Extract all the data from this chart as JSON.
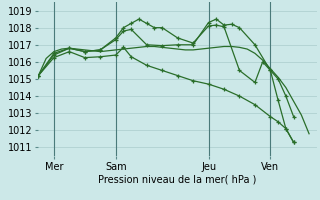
{
  "background_color": "#cce8e8",
  "grid_color": "#aacccc",
  "line_color": "#2a6e2a",
  "xlabel": "Pression niveau de la mer( hPa )",
  "ylim": [
    1010.5,
    1019.5
  ],
  "yticks": [
    1011,
    1012,
    1013,
    1014,
    1015,
    1016,
    1017,
    1018,
    1019
  ],
  "xtick_labels": [
    "Mer",
    "Sam",
    "Jeu",
    "Ven"
  ],
  "xtick_positions": [
    2,
    10,
    22,
    30
  ],
  "vlines": [
    2,
    10,
    22,
    30
  ],
  "xlim": [
    0,
    36
  ],
  "line_smooth_x": [
    0,
    1,
    2,
    3,
    4,
    5,
    6,
    7,
    8,
    9,
    10,
    11,
    12,
    13,
    14,
    15,
    16,
    17,
    18,
    19,
    20,
    21,
    22,
    23,
    24,
    25,
    26,
    27,
    28,
    29,
    30,
    31,
    32,
    33,
    34,
    35
  ],
  "line_smooth_y": [
    1015.2,
    1016.2,
    1016.6,
    1016.75,
    1016.8,
    1016.75,
    1016.7,
    1016.65,
    1016.6,
    1016.65,
    1016.7,
    1016.75,
    1016.8,
    1016.85,
    1016.9,
    1016.9,
    1016.85,
    1016.8,
    1016.75,
    1016.7,
    1016.7,
    1016.75,
    1016.8,
    1016.85,
    1016.9,
    1016.9,
    1016.85,
    1016.75,
    1016.5,
    1016.1,
    1015.6,
    1015.1,
    1014.5,
    1013.7,
    1012.9,
    1011.8
  ],
  "line_wavy_x": [
    0,
    2,
    4,
    6,
    8,
    10,
    11,
    12,
    14,
    16,
    18,
    20,
    22,
    23,
    24,
    25,
    26,
    28,
    30,
    31,
    32,
    33
  ],
  "line_wavy_y": [
    1015.2,
    1016.5,
    1016.8,
    1016.6,
    1016.7,
    1017.3,
    1017.8,
    1017.9,
    1017.0,
    1016.95,
    1017.0,
    1017.0,
    1018.3,
    1018.5,
    1018.15,
    1018.2,
    1018.0,
    1017.0,
    1015.5,
    1015.0,
    1014.0,
    1012.8
  ],
  "line_desc_x": [
    0,
    2,
    4,
    6,
    8,
    10,
    11,
    12,
    14,
    16,
    18,
    20,
    22,
    24,
    26,
    28,
    30,
    31,
    32,
    33
  ],
  "line_desc_y": [
    1015.2,
    1016.25,
    1016.6,
    1016.25,
    1016.3,
    1016.4,
    1016.85,
    1016.3,
    1015.8,
    1015.5,
    1015.2,
    1014.9,
    1014.7,
    1014.4,
    1014.0,
    1013.5,
    1012.8,
    1012.5,
    1012.1,
    1011.3
  ],
  "line_peak_x": [
    0,
    2,
    4,
    6,
    8,
    10,
    11,
    12,
    13,
    14,
    15,
    16,
    18,
    20,
    22,
    23,
    24,
    26,
    28,
    29,
    30,
    31,
    32,
    33
  ],
  "line_peak_y": [
    1015.2,
    1016.4,
    1016.8,
    1016.6,
    1016.7,
    1017.4,
    1018.0,
    1018.25,
    1018.5,
    1018.25,
    1018.0,
    1018.0,
    1017.4,
    1017.1,
    1018.1,
    1018.15,
    1018.05,
    1015.5,
    1014.8,
    1016.0,
    1015.5,
    1013.75,
    1012.1,
    1011.3
  ]
}
